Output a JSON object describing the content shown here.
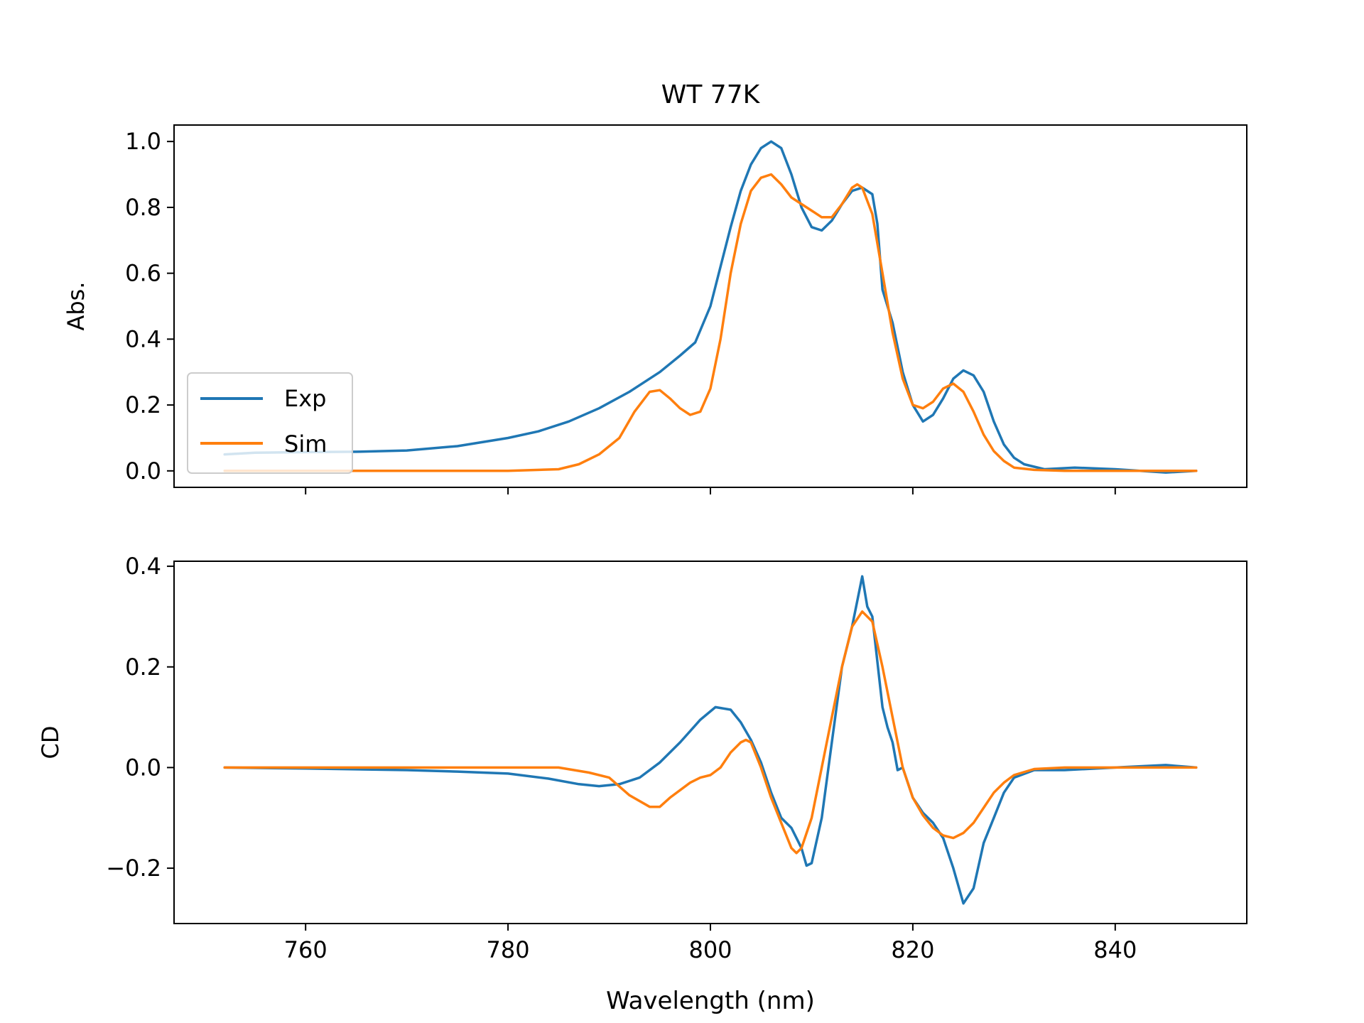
{
  "chart_data": {
    "type": "line",
    "title": "WT 77K",
    "xlabel": "Wavelength (nm)",
    "xlim": [
      747,
      853
    ],
    "x_ticks": [
      760,
      780,
      800,
      820,
      840
    ],
    "legend": {
      "placement": "lower-left",
      "entries": [
        "Exp",
        "Sim"
      ]
    },
    "colors": {
      "exp": "#1f77b4",
      "sim": "#ff7f0e"
    },
    "grid": false,
    "panels": [
      {
        "name": "absorbance",
        "ylabel": "Abs.",
        "ylim": [
          -0.05,
          1.05
        ],
        "y_ticks": [
          {
            "value": 0.0,
            "label": "0.0"
          },
          {
            "value": 0.2,
            "label": "0.2"
          },
          {
            "value": 0.4,
            "label": "0.4"
          },
          {
            "value": 0.6,
            "label": "0.6"
          },
          {
            "value": 0.8,
            "label": "0.8"
          },
          {
            "value": 1.0,
            "label": "1.0"
          }
        ],
        "series": [
          {
            "name": "Exp",
            "color": "#1f77b4",
            "points": [
              [
                752,
                0.05
              ],
              [
                755,
                0.055
              ],
              [
                760,
                0.057
              ],
              [
                765,
                0.058
              ],
              [
                770,
                0.062
              ],
              [
                775,
                0.075
              ],
              [
                780,
                0.1
              ],
              [
                783,
                0.12
              ],
              [
                786,
                0.15
              ],
              [
                789,
                0.19
              ],
              [
                792,
                0.24
              ],
              [
                795,
                0.3
              ],
              [
                797,
                0.35
              ],
              [
                798.5,
                0.39
              ],
              [
                800,
                0.5
              ],
              [
                801,
                0.62
              ],
              [
                802,
                0.74
              ],
              [
                803,
                0.85
              ],
              [
                804,
                0.93
              ],
              [
                805,
                0.98
              ],
              [
                806,
                1.0
              ],
              [
                807,
                0.98
              ],
              [
                808,
                0.9
              ],
              [
                809,
                0.8
              ],
              [
                810,
                0.74
              ],
              [
                811,
                0.73
              ],
              [
                812,
                0.76
              ],
              [
                813,
                0.81
              ],
              [
                814,
                0.85
              ],
              [
                815,
                0.86
              ],
              [
                816,
                0.84
              ],
              [
                816.5,
                0.75
              ],
              [
                817,
                0.55
              ],
              [
                818,
                0.45
              ],
              [
                819,
                0.3
              ],
              [
                820,
                0.2
              ],
              [
                821,
                0.15
              ],
              [
                822,
                0.17
              ],
              [
                823,
                0.22
              ],
              [
                824,
                0.28
              ],
              [
                825,
                0.305
              ],
              [
                826,
                0.29
              ],
              [
                827,
                0.24
              ],
              [
                828,
                0.15
              ],
              [
                829,
                0.08
              ],
              [
                830,
                0.04
              ],
              [
                831,
                0.02
              ],
              [
                833,
                0.005
              ],
              [
                836,
                0.01
              ],
              [
                840,
                0.005
              ],
              [
                845,
                -0.005
              ],
              [
                848,
                0.0
              ]
            ]
          },
          {
            "name": "Sim",
            "color": "#ff7f0e",
            "points": [
              [
                752,
                0.0
              ],
              [
                760,
                0.0
              ],
              [
                770,
                0.0
              ],
              [
                780,
                0.0
              ],
              [
                785,
                0.005
              ],
              [
                787,
                0.02
              ],
              [
                789,
                0.05
              ],
              [
                791,
                0.1
              ],
              [
                792.5,
                0.18
              ],
              [
                794,
                0.24
              ],
              [
                795,
                0.245
              ],
              [
                796,
                0.22
              ],
              [
                797,
                0.19
              ],
              [
                798,
                0.17
              ],
              [
                799,
                0.18
              ],
              [
                800,
                0.25
              ],
              [
                801,
                0.4
              ],
              [
                802,
                0.6
              ],
              [
                803,
                0.75
              ],
              [
                804,
                0.85
              ],
              [
                805,
                0.89
              ],
              [
                806,
                0.9
              ],
              [
                807,
                0.87
              ],
              [
                808,
                0.83
              ],
              [
                810,
                0.79
              ],
              [
                811,
                0.77
              ],
              [
                812,
                0.77
              ],
              [
                813,
                0.81
              ],
              [
                814,
                0.86
              ],
              [
                814.5,
                0.87
              ],
              [
                815,
                0.86
              ],
              [
                816,
                0.78
              ],
              [
                817,
                0.6
              ],
              [
                818,
                0.42
              ],
              [
                819,
                0.28
              ],
              [
                820,
                0.2
              ],
              [
                821,
                0.19
              ],
              [
                822,
                0.21
              ],
              [
                823,
                0.25
              ],
              [
                824,
                0.265
              ],
              [
                825,
                0.24
              ],
              [
                826,
                0.18
              ],
              [
                827,
                0.11
              ],
              [
                828,
                0.06
              ],
              [
                829,
                0.03
              ],
              [
                830,
                0.01
              ],
              [
                832,
                0.003
              ],
              [
                835,
                0.0
              ],
              [
                840,
                0.0
              ],
              [
                848,
                0.0
              ]
            ]
          }
        ]
      },
      {
        "name": "cd",
        "ylabel": "CD",
        "ylim": [
          -0.31,
          0.41
        ],
        "y_ticks": [
          {
            "value": -0.2,
            "label": "−0.2"
          },
          {
            "value": 0.0,
            "label": "0.0"
          },
          {
            "value": 0.2,
            "label": "0.2"
          },
          {
            "value": 0.4,
            "label": "0.4"
          }
        ],
        "series": [
          {
            "name": "Exp",
            "color": "#1f77b4",
            "points": [
              [
                752,
                0.0
              ],
              [
                760,
                -0.002
              ],
              [
                770,
                -0.005
              ],
              [
                775,
                -0.008
              ],
              [
                780,
                -0.012
              ],
              [
                784,
                -0.022
              ],
              [
                787,
                -0.033
              ],
              [
                789,
                -0.037
              ],
              [
                791,
                -0.033
              ],
              [
                793,
                -0.02
              ],
              [
                795,
                0.01
              ],
              [
                797,
                0.05
              ],
              [
                799,
                0.095
              ],
              [
                800.5,
                0.12
              ],
              [
                802,
                0.115
              ],
              [
                803,
                0.09
              ],
              [
                804,
                0.055
              ],
              [
                805,
                0.01
              ],
              [
                806,
                -0.05
              ],
              [
                807,
                -0.1
              ],
              [
                808,
                -0.12
              ],
              [
                809,
                -0.16
              ],
              [
                809.5,
                -0.195
              ],
              [
                810,
                -0.19
              ],
              [
                811,
                -0.1
              ],
              [
                812,
                0.05
              ],
              [
                813,
                0.2
              ],
              [
                814,
                0.28
              ],
              [
                815,
                0.38
              ],
              [
                815.5,
                0.32
              ],
              [
                816,
                0.3
              ],
              [
                817,
                0.12
              ],
              [
                817.5,
                0.08
              ],
              [
                818,
                0.05
              ],
              [
                818.5,
                -0.005
              ],
              [
                819,
                0.0
              ],
              [
                820,
                -0.06
              ],
              [
                821,
                -0.09
              ],
              [
                822,
                -0.11
              ],
              [
                823,
                -0.14
              ],
              [
                824,
                -0.2
              ],
              [
                825,
                -0.27
              ],
              [
                826,
                -0.24
              ],
              [
                827,
                -0.15
              ],
              [
                828,
                -0.1
              ],
              [
                829,
                -0.05
              ],
              [
                830,
                -0.02
              ],
              [
                832,
                -0.005
              ],
              [
                835,
                -0.005
              ],
              [
                840,
                0.0
              ],
              [
                845,
                0.005
              ],
              [
                848,
                0.0
              ]
            ]
          },
          {
            "name": "Sim",
            "color": "#ff7f0e",
            "points": [
              [
                752,
                0.0
              ],
              [
                760,
                0.0
              ],
              [
                770,
                0.0
              ],
              [
                780,
                0.0
              ],
              [
                785,
                0.0
              ],
              [
                788,
                -0.01
              ],
              [
                790,
                -0.02
              ],
              [
                792,
                -0.055
              ],
              [
                794,
                -0.078
              ],
              [
                795,
                -0.078
              ],
              [
                796,
                -0.06
              ],
              [
                798,
                -0.03
              ],
              [
                799,
                -0.02
              ],
              [
                800,
                -0.015
              ],
              [
                801,
                0.0
              ],
              [
                802,
                0.03
              ],
              [
                803,
                0.05
              ],
              [
                803.5,
                0.055
              ],
              [
                804,
                0.05
              ],
              [
                805,
                0.0
              ],
              [
                806,
                -0.06
              ],
              [
                807,
                -0.11
              ],
              [
                808,
                -0.16
              ],
              [
                808.5,
                -0.17
              ],
              [
                809,
                -0.16
              ],
              [
                810,
                -0.1
              ],
              [
                811,
                0.0
              ],
              [
                812,
                0.1
              ],
              [
                813,
                0.2
              ],
              [
                814,
                0.28
              ],
              [
                815,
                0.31
              ],
              [
                816,
                0.29
              ],
              [
                817,
                0.2
              ],
              [
                818,
                0.1
              ],
              [
                819,
                0.0
              ],
              [
                820,
                -0.06
              ],
              [
                821,
                -0.095
              ],
              [
                822,
                -0.12
              ],
              [
                823,
                -0.135
              ],
              [
                824,
                -0.14
              ],
              [
                825,
                -0.13
              ],
              [
                826,
                -0.11
              ],
              [
                827,
                -0.08
              ],
              [
                828,
                -0.05
              ],
              [
                829,
                -0.03
              ],
              [
                830,
                -0.015
              ],
              [
                832,
                -0.003
              ],
              [
                835,
                0.0
              ],
              [
                840,
                0.0
              ],
              [
                848,
                0.0
              ]
            ]
          }
        ]
      }
    ]
  }
}
